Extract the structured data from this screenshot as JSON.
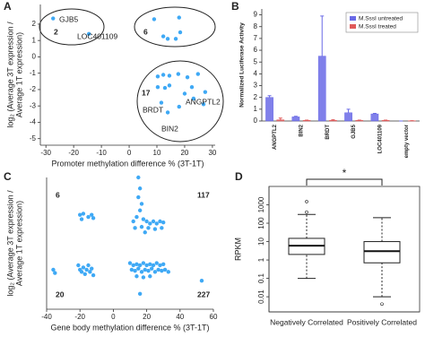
{
  "chart_data": [
    {
      "panel_label": "A",
      "type": "scatter",
      "color": "#3fa9f5",
      "x_label": "Promoter methylation difference % (3T-1T)",
      "y_label": [
        "log₂ (Average 3T expression /",
        "Average 1T expression)"
      ],
      "xlim": [
        -32,
        31
      ],
      "xticks": [
        -30,
        -20,
        -10,
        0,
        10,
        20,
        30
      ],
      "ylim": [
        -5.4,
        3.2
      ],
      "yticks": [
        -5,
        -4,
        -3,
        -2,
        -1,
        0,
        1,
        2
      ],
      "x": [
        -27.4,
        -14.5,
        9,
        12.3,
        13.9,
        16.8,
        18.4,
        18,
        10.3,
        12.3,
        14.5,
        17.7,
        21,
        24.8,
        10.3,
        12.9,
        14.5,
        20,
        22.6,
        23.2,
        26.8,
        27.4,
        11.6,
        18,
        13.9
      ],
      "y": [
        2.35,
        1.4,
        2.3,
        1.25,
        1.1,
        1.1,
        1.5,
        2.4,
        -1.2,
        -1.1,
        -1.15,
        -1.05,
        -1.25,
        -1.05,
        -1.85,
        -1.9,
        -1.75,
        -2.25,
        -1.85,
        -2.55,
        -2.9,
        -2.15,
        -2.8,
        -3.05,
        -3.4
      ],
      "annotations": [
        {
          "text": "GJB5",
          "color": "#222222"
        },
        {
          "text": "LOC401109",
          "color": "#222222"
        },
        {
          "text": "2",
          "color": "#e0312f"
        },
        {
          "text": "6",
          "color": "#e0312f"
        },
        {
          "text": "17",
          "color": "#e0312f"
        },
        {
          "text": "ANGPTL2",
          "color": "#222222"
        },
        {
          "text": "BRDT",
          "color": "#222222"
        },
        {
          "text": "BIN2",
          "color": "#222222"
        }
      ]
    },
    {
      "panel_label": "B",
      "type": "bar",
      "y_label": "Normalized Luciferase Activity",
      "categories": [
        "ANGPTL2",
        "BIN2",
        "BRDT",
        "GJB5",
        "LOC401109",
        "empty vector"
      ],
      "ylim": [
        0,
        9.5
      ],
      "yticks": [
        0,
        1,
        2,
        3,
        4,
        5,
        6,
        7,
        8,
        9
      ],
      "legend": "upper right",
      "series": [
        {
          "name": "M.SssI untreated",
          "color": "#6a6ae6",
          "values": [
            2.0,
            0.35,
            5.5,
            0.7,
            0.6,
            0
          ],
          "errors": [
            0.15,
            0.05,
            3.4,
            0.3,
            0.05,
            0
          ]
        },
        {
          "name": "M.SssI treated",
          "color": "#e05a5a",
          "values": [
            0.1,
            0.05,
            0.05,
            0.05,
            0.05,
            0.02
          ],
          "errors": [
            0.15,
            0.03,
            0.05,
            0.03,
            0.03,
            0.01
          ]
        }
      ]
    },
    {
      "panel_label": "C",
      "type": "scatter",
      "color": "#3fa9f5",
      "x_label": "Gene body methylation difference % (3T-1T)",
      "y_label": [
        "log₂ (Average 3T expression /",
        "Average 1T expression)"
      ],
      "xlim": [
        -40,
        60
      ],
      "xticks": [
        -40,
        -20,
        0,
        20,
        40,
        60
      ],
      "ylim": [
        -3,
        3
      ],
      "x": [
        -20,
        -18,
        -13,
        -12,
        -19,
        -15,
        -36,
        -35,
        -21,
        -20,
        -19,
        -18,
        -17,
        -16,
        -15,
        -14,
        -13,
        -12,
        15,
        16,
        15,
        17,
        16,
        14,
        12,
        18,
        20,
        22,
        24,
        26,
        28,
        30,
        13,
        17,
        21,
        25,
        29,
        19,
        10,
        12,
        14,
        16,
        18,
        20,
        22,
        24,
        26,
        28,
        30,
        11,
        13,
        15,
        17,
        19,
        21,
        23,
        25,
        27,
        29,
        31,
        33,
        14,
        18,
        22,
        16,
        53
      ],
      "y": [
        1.3,
        1.35,
        1.3,
        1.15,
        1.1,
        1.2,
        -1.2,
        -1.35,
        -1.0,
        -1.2,
        -1.3,
        -1.1,
        -1.4,
        -1.2,
        -1.0,
        -1.3,
        -1.15,
        -1.45,
        3.0,
        2.5,
        2.1,
        1.8,
        1.5,
        1.2,
        1.0,
        1.1,
        1.0,
        0.9,
        1.0,
        0.9,
        1.0,
        0.95,
        0.7,
        0.75,
        0.7,
        0.65,
        0.7,
        0.5,
        -0.9,
        -1.0,
        -0.95,
        -1.0,
        -0.9,
        -1.0,
        -0.95,
        -1.0,
        -0.9,
        -1.0,
        -0.95,
        -1.2,
        -1.25,
        -1.15,
        -1.3,
        -1.2,
        -1.25,
        -1.15,
        -1.3,
        -1.2,
        -1.25,
        -1.2,
        -1.3,
        -1.5,
        -1.55,
        -1.5,
        -2.3,
        -1.7
      ],
      "annotations": [
        {
          "text": "6",
          "color": "#e0312f"
        },
        {
          "text": "117",
          "color": "#e0312f"
        },
        {
          "text": "20",
          "color": "#e0312f"
        },
        {
          "text": "227",
          "color": "#e0312f"
        }
      ]
    },
    {
      "panel_label": "D",
      "type": "box",
      "y_label": "RPKM",
      "log_y": true,
      "significance": "*",
      "categories": [
        "Negatively Correlated",
        "Positively Correlated"
      ],
      "ylim": [
        0.0015,
        10000
      ],
      "yticks": [
        0.01,
        0.1,
        1,
        10,
        100,
        1000
      ],
      "boxes": [
        {
          "whislo": 0.1,
          "q1": 2,
          "med": 6,
          "q3": 15,
          "whishi": 300,
          "fliers": [
            400,
            1500
          ]
        },
        {
          "whislo": 0.01,
          "q1": 0.7,
          "med": 3,
          "q3": 10,
          "whishi": 200,
          "fliers": [
            0.004
          ]
        }
      ]
    }
  ]
}
